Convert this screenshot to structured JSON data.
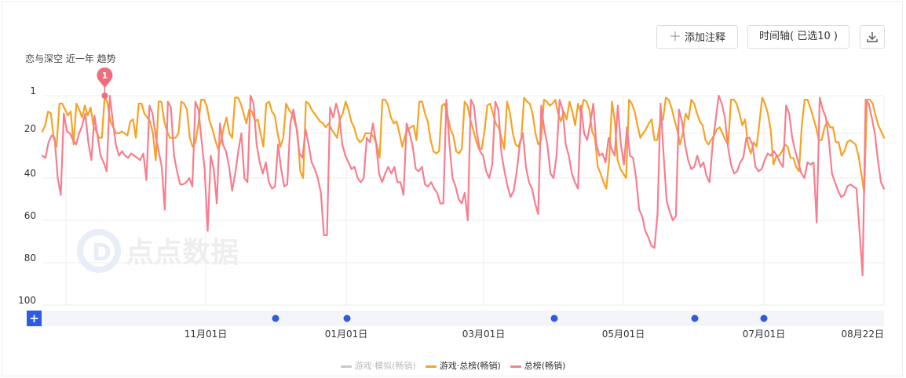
{
  "header": {
    "add_annotation_label": "添加注释",
    "timeline_label": "时间轴( 已选10 )",
    "subtitle": "恋与深空 近一年 趋势"
  },
  "watermark": "点点数据",
  "colors": {
    "orange": "#f5a324",
    "pink": "#f77e8f",
    "gray": "#c9c9c9",
    "marker": "#f06d7e",
    "timeline_dot": "#2f5be0",
    "plus_btn": "#2f5be0"
  },
  "timeline": {
    "plus_label": "+",
    "event_count": 5
  },
  "chart_data": {
    "type": "line",
    "y_reversed": true,
    "ylim": [
      1,
      100
    ],
    "yticks": [
      "1",
      "20",
      "40",
      "60",
      "80",
      "100"
    ],
    "ytick_values": [
      1,
      20,
      40,
      60,
      80,
      100
    ],
    "xticks": [
      "11月01日",
      "01月01日",
      "03月01日",
      "05月01日",
      "07月01日",
      "08月22日"
    ],
    "annotation": {
      "label": "1",
      "series": 1,
      "x": 22
    },
    "series": [
      {
        "name": "游戏·模拟(畅销)",
        "color": "#c9c9c9",
        "visible": false,
        "values": []
      },
      {
        "name": "游戏·总榜(畅销)",
        "color": "#f5a324",
        "visible": true,
        "values": [
          19,
          16,
          9,
          10,
          22,
          26,
          5,
          5,
          8,
          11,
          9,
          25,
          5,
          8,
          12,
          6,
          11,
          7,
          16,
          19,
          22,
          22,
          1,
          5,
          14,
          17,
          20,
          20,
          19,
          20,
          21,
          14,
          13,
          22,
          5,
          5,
          10,
          12,
          14,
          20,
          32,
          4,
          4,
          14,
          19,
          22,
          22,
          22,
          20,
          4,
          5,
          8,
          22,
          26,
          24,
          16,
          3,
          3,
          6,
          14,
          18,
          23,
          27,
          24,
          17,
          12,
          20,
          22,
          2,
          2,
          5,
          10,
          15,
          8,
          9,
          14,
          13,
          20,
          26,
          5,
          4,
          9,
          11,
          20,
          26,
          22,
          5,
          8,
          10,
          14,
          19,
          37,
          40,
          4,
          5,
          8,
          10,
          12,
          14,
          15,
          17,
          15,
          18,
          20,
          22,
          13,
          10,
          4,
          8,
          14,
          17,
          22,
          24,
          23,
          20,
          20,
          20,
          22,
          25,
          31,
          3,
          3,
          6,
          12,
          15,
          14,
          20,
          26,
          21,
          18,
          17,
          16,
          23,
          4,
          4,
          10,
          14,
          23,
          28,
          29,
          28,
          6,
          5,
          11,
          18,
          21,
          28,
          29,
          27,
          4,
          6,
          13,
          18,
          23,
          27,
          27,
          19,
          6,
          5,
          10,
          15,
          17,
          22,
          27,
          4,
          10,
          20,
          25,
          26,
          22,
          2,
          4,
          5,
          10,
          20,
          25,
          23,
          3,
          4,
          6,
          5,
          3,
          10,
          14,
          9,
          13,
          4,
          9,
          16,
          5,
          10,
          3,
          4,
          8,
          19,
          22,
          35,
          38,
          42,
          45,
          32,
          4,
          14,
          32,
          36,
          38,
          40,
          3,
          5,
          9,
          16,
          22,
          20,
          18,
          15,
          13,
          23,
          23,
          14,
          13,
          2,
          3,
          7,
          13,
          18,
          25,
          20,
          10,
          13,
          3,
          5,
          10,
          14,
          16,
          23,
          25,
          23,
          21,
          18,
          17,
          20,
          23,
          25,
          3,
          3,
          5,
          10,
          16,
          13,
          25,
          29,
          24,
          26,
          15,
          2,
          5,
          10,
          18,
          34,
          30,
          30,
          28,
          25,
          26,
          31,
          31,
          35,
          37,
          16,
          3,
          3,
          7,
          12,
          17,
          23,
          23,
          17,
          14,
          17,
          17,
          24,
          24,
          30,
          28,
          24,
          23,
          24,
          25,
          30,
          38,
          47,
          3,
          3,
          5,
          11,
          16,
          19,
          22
        ]
      },
      {
        "name": "总榜(畅销)",
        "color": "#f77e8f",
        "visible": true,
        "values": [
          30,
          31,
          24,
          21,
          22,
          40,
          48,
          10,
          19,
          20,
          23,
          25,
          20,
          16,
          10,
          24,
          32,
          11,
          21,
          30,
          33,
          37,
          1,
          14,
          25,
          30,
          28,
          30,
          31,
          29,
          30,
          31,
          32,
          29,
          41,
          6,
          10,
          21,
          28,
          35,
          55,
          4,
          7,
          30,
          37,
          43,
          43,
          42,
          40,
          44,
          4,
          8,
          23,
          36,
          65,
          30,
          36,
          52,
          15,
          25,
          28,
          35,
          46,
          38,
          28,
          20,
          40,
          42,
          1,
          5,
          25,
          33,
          38,
          33,
          42,
          45,
          44,
          25,
          36,
          44,
          43,
          15,
          8,
          17,
          29,
          31,
          18,
          25,
          33,
          36,
          40,
          47,
          67,
          67,
          7,
          12,
          5,
          11,
          25,
          30,
          33,
          36,
          35,
          40,
          42,
          40,
          22,
          24,
          15,
          24,
          38,
          42,
          38,
          35,
          38,
          35,
          42,
          42,
          48,
          15,
          20,
          26,
          36,
          37,
          35,
          43,
          44,
          42,
          45,
          47,
          52,
          52,
          3,
          25,
          40,
          44,
          50,
          52,
          47,
          60,
          3,
          6,
          20,
          28,
          30,
          37,
          40,
          34,
          4,
          8,
          29,
          37,
          44,
          49,
          46,
          37,
          25,
          20,
          35,
          42,
          45,
          52,
          57,
          6,
          18,
          25,
          38,
          40,
          30,
          3,
          8,
          25,
          30,
          38,
          42,
          45,
          6,
          20,
          23,
          15,
          5,
          25,
          30,
          29,
          33,
          22,
          27,
          30,
          6,
          25,
          34,
          17,
          30,
          31,
          40,
          55,
          58,
          65,
          68,
          72,
          73,
          57,
          5,
          30,
          51,
          56,
          60,
          58,
          8,
          14,
          25,
          32,
          36,
          35,
          30,
          35,
          33,
          39,
          42,
          25,
          13,
          1,
          5,
          12,
          26,
          34,
          38,
          37,
          33,
          31,
          22,
          22,
          25,
          35,
          37,
          36,
          32,
          29,
          30,
          28,
          30,
          33,
          35,
          6,
          10,
          22,
          28,
          33,
          38,
          40,
          33,
          34,
          33,
          61,
          2,
          8,
          12,
          23,
          38,
          42,
          46,
          49,
          48,
          44,
          43,
          44,
          45,
          65,
          86,
          3,
          5,
          12,
          20,
          32,
          42,
          45
        ]
      }
    ]
  }
}
